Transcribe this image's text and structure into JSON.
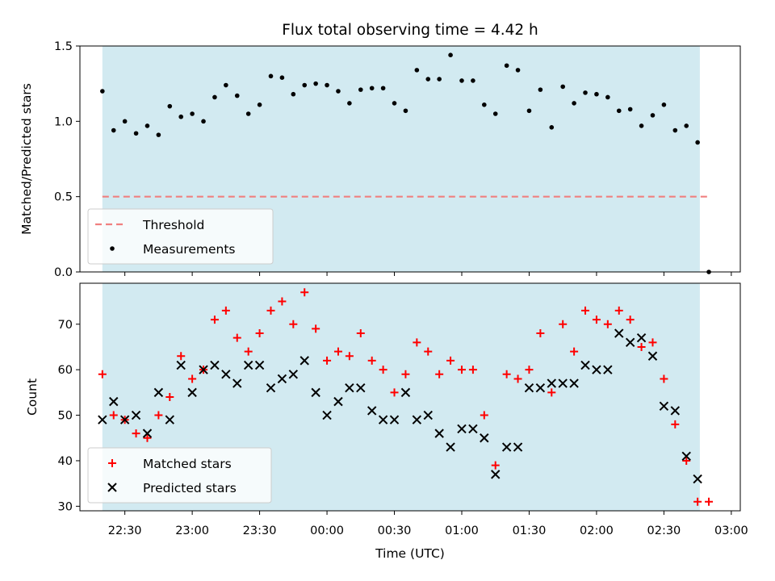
{
  "chart_data": {
    "title": "Flux total observing time = 4.42 h",
    "xlabel": "Time (UTC)",
    "x_ticks": [
      "22:30",
      "23:00",
      "23:30",
      "00:00",
      "00:30",
      "01:00",
      "01:30",
      "02:00",
      "02:30",
      "03:00"
    ],
    "x_range": [
      "22:10",
      "03:04"
    ],
    "observing_window": [
      "22:20",
      "02:46"
    ],
    "colors": {
      "window": "#add8e6",
      "threshold": "#f08080",
      "measurements": "#000000",
      "matched": "#ff0000",
      "predicted": "#000000"
    },
    "panels": [
      {
        "type": "scatter",
        "ylabel": "Matched/Predicted stars",
        "ylim": [
          0,
          1.5
        ],
        "y_ticks": [
          "0.0",
          "0.5",
          "1.0",
          "1.5"
        ],
        "threshold": 0.5,
        "legend": {
          "position": "lower-left",
          "entries": [
            "Threshold",
            "Measurements"
          ]
        },
        "series": [
          {
            "name": "Measurements",
            "x": [
              "22:20",
              "22:25",
              "22:30",
              "22:35",
              "22:40",
              "22:45",
              "22:50",
              "22:55",
              "23:00",
              "23:05",
              "23:10",
              "23:15",
              "23:20",
              "23:25",
              "23:30",
              "23:35",
              "23:40",
              "23:45",
              "23:50",
              "23:55",
              "00:00",
              "00:05",
              "00:10",
              "00:15",
              "00:20",
              "00:25",
              "00:30",
              "00:35",
              "00:40",
              "00:45",
              "00:50",
              "00:55",
              "01:00",
              "01:05",
              "01:10",
              "01:15",
              "01:20",
              "01:25",
              "01:30",
              "01:35",
              "01:40",
              "01:45",
              "01:50",
              "01:55",
              "02:00",
              "02:05",
              "02:10",
              "02:15",
              "02:20",
              "02:25",
              "02:30",
              "02:35",
              "02:40",
              "02:45",
              "02:50"
            ],
            "y": [
              1.2,
              0.94,
              1.0,
              0.92,
              0.97,
              0.91,
              1.1,
              1.03,
              1.05,
              1.0,
              1.16,
              1.24,
              1.17,
              1.05,
              1.11,
              1.3,
              1.29,
              1.18,
              1.24,
              1.25,
              1.24,
              1.2,
              1.12,
              1.21,
              1.22,
              1.22,
              1.12,
              1.07,
              1.34,
              1.28,
              1.28,
              1.44,
              1.27,
              1.27,
              1.11,
              1.05,
              1.37,
              1.34,
              1.07,
              1.21,
              0.96,
              1.23,
              1.12,
              1.19,
              1.18,
              1.16,
              1.07,
              1.08,
              0.97,
              1.04,
              1.11,
              0.94,
              0.97,
              0.86,
              0.0
            ]
          }
        ]
      },
      {
        "type": "scatter",
        "ylabel": "Count",
        "ylim": [
          29,
          79
        ],
        "y_ticks": [
          "30",
          "40",
          "50",
          "60",
          "70"
        ],
        "legend": {
          "position": "lower-left",
          "entries": [
            "Matched stars",
            "Predicted stars"
          ]
        },
        "series": [
          {
            "name": "Matched stars",
            "marker": "+",
            "x": [
              "22:20",
              "22:25",
              "22:30",
              "22:35",
              "22:40",
              "22:45",
              "22:50",
              "22:55",
              "23:00",
              "23:05",
              "23:10",
              "23:15",
              "23:20",
              "23:25",
              "23:30",
              "23:35",
              "23:40",
              "23:45",
              "23:50",
              "23:55",
              "00:00",
              "00:05",
              "00:10",
              "00:15",
              "00:20",
              "00:25",
              "00:30",
              "00:35",
              "00:40",
              "00:45",
              "00:50",
              "00:55",
              "01:00",
              "01:05",
              "01:10",
              "01:15",
              "01:20",
              "01:25",
              "01:30",
              "01:35",
              "01:40",
              "01:45",
              "01:50",
              "01:55",
              "02:00",
              "02:05",
              "02:10",
              "02:15",
              "02:20",
              "02:25",
              "02:30",
              "02:35",
              "02:40",
              "02:45",
              "02:50"
            ],
            "y": [
              59,
              50,
              49,
              46,
              45,
              50,
              54,
              63,
              58,
              60,
              71,
              73,
              67,
              64,
              68,
              73,
              75,
              70,
              77,
              69,
              62,
              64,
              63,
              68,
              62,
              60,
              55,
              59,
              66,
              64,
              59,
              62,
              60,
              60,
              50,
              39,
              59,
              58,
              60,
              68,
              55,
              70,
              64,
              73,
              71,
              70,
              73,
              71,
              65,
              66,
              58,
              48,
              40,
              31,
              31
            ]
          },
          {
            "name": "Predicted stars",
            "marker": "x",
            "x": [
              "22:20",
              "22:25",
              "22:30",
              "22:35",
              "22:40",
              "22:45",
              "22:50",
              "22:55",
              "23:00",
              "23:05",
              "23:10",
              "23:15",
              "23:20",
              "23:25",
              "23:30",
              "23:35",
              "23:40",
              "23:45",
              "23:50",
              "23:55",
              "00:00",
              "00:05",
              "00:10",
              "00:15",
              "00:20",
              "00:25",
              "00:30",
              "00:35",
              "00:40",
              "00:45",
              "00:50",
              "00:55",
              "01:00",
              "01:05",
              "01:10",
              "01:15",
              "01:20",
              "01:25",
              "01:30",
              "01:35",
              "01:40",
              "01:45",
              "01:50",
              "01:55",
              "02:00",
              "02:05",
              "02:10",
              "02:15",
              "02:20",
              "02:25",
              "02:30",
              "02:35",
              "02:40",
              "02:45"
            ],
            "y": [
              49,
              53,
              49,
              50,
              46,
              55,
              49,
              61,
              55,
              60,
              61,
              59,
              57,
              61,
              61,
              56,
              58,
              59,
              62,
              55,
              50,
              53,
              56,
              56,
              51,
              49,
              49,
              55,
              49,
              50,
              46,
              43,
              47,
              47,
              45,
              37,
              43,
              43,
              56,
              56,
              57,
              57,
              57,
              61,
              60,
              60,
              68,
              66,
              67,
              63,
              52,
              51,
              41,
              36
            ]
          }
        ]
      }
    ]
  }
}
